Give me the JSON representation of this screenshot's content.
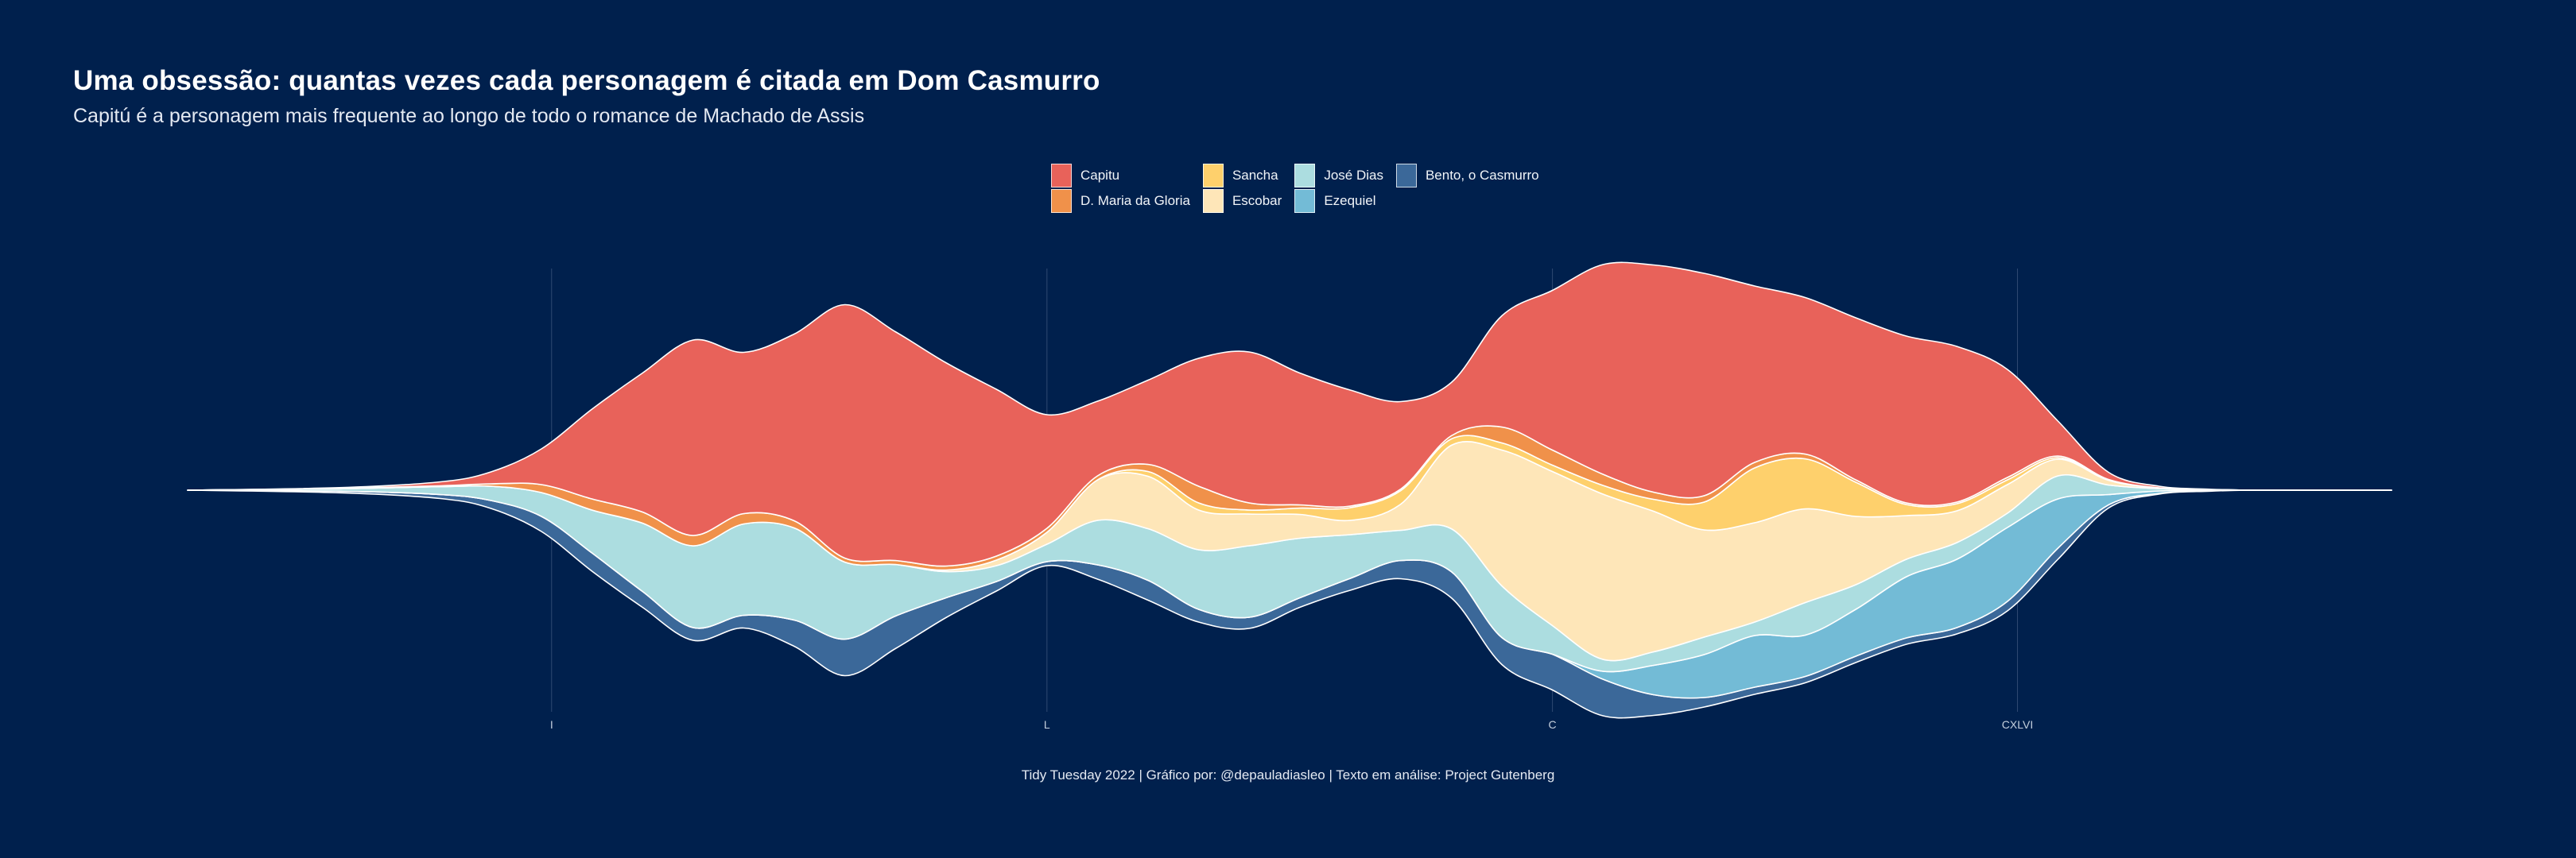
{
  "title": "Uma obsessão: quantas vezes cada personagem é citada em Dom Casmurro",
  "subtitle": "Capitú é a personagem mais frequente ao longo de todo o romance de Machado de Assis",
  "caption": "Tidy Tuesday 2022 | Gráfico por: @depauladiasleo | Texto em análise: Project Gutenberg",
  "colors": {
    "background": "#00204d",
    "grid": "#2f4a72",
    "outline": "#ffffff"
  },
  "legend": {
    "items": [
      {
        "name": "Capitu",
        "color": "#e8625a"
      },
      {
        "name": "D. Maria da Gloria",
        "color": "#f0914a"
      },
      {
        "name": "Sancha",
        "color": "#fed06c"
      },
      {
        "name": "Escobar",
        "color": "#fee6b8"
      },
      {
        "name": "José Dias",
        "color": "#acdde0"
      },
      {
        "name": "Ezequiel",
        "color": "#73bbd6"
      },
      {
        "name": "Bento, o Casmurro",
        "color": "#3b6899"
      }
    ]
  },
  "chart_data": {
    "type": "area",
    "variant": "streamgraph",
    "xlabel": "",
    "ylabel": "",
    "x_ticks": [
      {
        "value": 1,
        "label": "I"
      },
      {
        "value": 50,
        "label": "L"
      },
      {
        "value": 100,
        "label": "C"
      },
      {
        "value": 146,
        "label": "CXLVI"
      }
    ],
    "xlim": [
      -35,
      183
    ],
    "grid": "vertical-at-ticks",
    "legend_position": "top-center",
    "x": [
      -35,
      -20,
      -10,
      -5,
      0,
      5,
      10,
      15,
      20,
      25,
      30,
      35,
      40,
      45,
      50,
      55,
      60,
      65,
      70,
      75,
      80,
      85,
      90,
      95,
      100,
      105,
      110,
      115,
      120,
      125,
      130,
      135,
      140,
      145,
      150,
      155,
      160,
      165,
      170,
      183
    ],
    "series": [
      {
        "name": "Bento, o Casmurro",
        "values": [
          0,
          0.2,
          0.5,
          1.0,
          1.9,
          2.3,
          2.0,
          1.6,
          1.6,
          3.3,
          4.6,
          4.1,
          2.5,
          1.2,
          0.5,
          1.8,
          2.5,
          1.6,
          1.4,
          1.2,
          1.5,
          2.3,
          3.3,
          3.4,
          4.5,
          4.6,
          2.6,
          1.2,
          0.9,
          0.8,
          0.8,
          0.8,
          0.8,
          1.2,
          1.4,
          0.4,
          0.1,
          0.05,
          0,
          0
        ]
      },
      {
        "name": "Ezequiel",
        "values": [
          0,
          0,
          0,
          0,
          0,
          0,
          0,
          0,
          0,
          0,
          0,
          0,
          0,
          0,
          0,
          0,
          0,
          0,
          0,
          0,
          0,
          0,
          0,
          0,
          0,
          1.0,
          3.7,
          5.4,
          6.5,
          5.2,
          5.9,
          7.7,
          8.6,
          9.3,
          6.2,
          1.3,
          0.3,
          0.1,
          0,
          0
        ]
      },
      {
        "name": "José Dias",
        "values": [
          0,
          0.3,
          1.0,
          1.8,
          3.0,
          5.4,
          8.6,
          10.3,
          11.5,
          11.6,
          9.7,
          6.5,
          3.3,
          2.0,
          2.2,
          5.6,
          6.5,
          7.5,
          9.0,
          7.5,
          5.5,
          3.8,
          5.4,
          6.5,
          3.6,
          1.5,
          1.7,
          2.2,
          1.7,
          4.1,
          3.1,
          2.2,
          2.1,
          1.8,
          2.9,
          1.2,
          0.3,
          0.05,
          0,
          0
        ]
      },
      {
        "name": "Escobar",
        "values": [
          0,
          0,
          0,
          0,
          0,
          0,
          0,
          0,
          0,
          0,
          0,
          0,
          0.2,
          0.7,
          1.5,
          5.1,
          6.6,
          5.0,
          4.0,
          3.0,
          1.8,
          3.3,
          10.5,
          17.1,
          19.4,
          20.8,
          17.7,
          13.5,
          12.5,
          11.8,
          8.6,
          5.5,
          4.0,
          3.6,
          2.1,
          0.6,
          0.1,
          0,
          0,
          0
        ]
      },
      {
        "name": "Sancha",
        "values": [
          0,
          0,
          0,
          0,
          0,
          0,
          0,
          0,
          0,
          0,
          0,
          0,
          0,
          0,
          0,
          0,
          0.6,
          0.9,
          0.5,
          0.8,
          1.6,
          1.7,
          0.8,
          0.9,
          0.8,
          1.1,
          1.5,
          3.5,
          6.9,
          6.3,
          4.3,
          1.4,
          0.9,
          0.6,
          0.2,
          0,
          0,
          0,
          0,
          0
        ]
      },
      {
        "name": "D. Maria da Gloria",
        "values": [
          0,
          0.05,
          0.1,
          0.3,
          1.0,
          1.4,
          1.4,
          1.3,
          1.3,
          0.9,
          0.5,
          0.5,
          0.5,
          0.5,
          0.5,
          0.5,
          0.9,
          2.1,
          0.9,
          0.4,
          0.2,
          0.2,
          0.4,
          2.0,
          1.9,
          1.4,
          0.9,
          0.8,
          0.7,
          0.6,
          0.3,
          0.2,
          0.2,
          0.3,
          0.2,
          0.1,
          0,
          0,
          0,
          0
        ]
      },
      {
        "name": "Capitu",
        "values": [
          0,
          0.1,
          0.5,
          1.5,
          4.5,
          11.3,
          17.5,
          24.6,
          20.3,
          23.5,
          31.9,
          28.8,
          25.6,
          21.0,
          14.3,
          9.4,
          10.6,
          16.1,
          19.0,
          16.6,
          14.6,
          11.0,
          6.7,
          14.0,
          20.1,
          26.4,
          28.6,
          28.0,
          22.2,
          19.7,
          20.4,
          21.0,
          19.6,
          13.6,
          4.4,
          0.9,
          0.2,
          0.05,
          0,
          0
        ]
      }
    ]
  }
}
